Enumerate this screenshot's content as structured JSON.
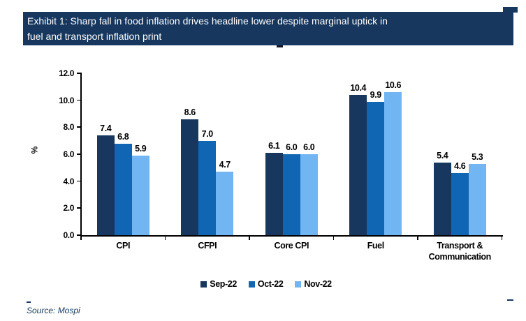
{
  "title_bar": {
    "text": "Exhibit 1: Sharp fall in food inflation drives headline lower despite marginal uptick in fuel and transport inflation print",
    "lines": [
      "Exhibit 1: Sharp fall in food inflation drives headline lower despite marginal uptick in",
      "fuel and transport inflation print"
    ],
    "background_color": "#17375E",
    "text_color": "#ffffff"
  },
  "source": {
    "text": "Source: Mospi",
    "color": "#17375E"
  },
  "chart_data": {
    "type": "bar",
    "categories": [
      "CPI",
      "CFPI",
      "Core CPI",
      "Fuel",
      "Transport & Communication"
    ],
    "series": [
      {
        "name": "Sep-22",
        "color": "#17375E",
        "values": [
          7.4,
          8.6,
          6.1,
          10.4,
          5.4
        ]
      },
      {
        "name": "Oct-22",
        "color": "#1066B2",
        "values": [
          6.8,
          7.0,
          6.0,
          9.9,
          4.6
        ]
      },
      {
        "name": "Nov-22",
        "color": "#71B6F3",
        "values": [
          5.9,
          4.7,
          6.0,
          10.6,
          5.3
        ]
      }
    ],
    "title": "",
    "xlabel": "",
    "ylabel": "%",
    "ylim": [
      0,
      12
    ],
    "yticks": [
      0,
      2,
      4,
      6,
      8,
      10,
      12
    ],
    "ytick_labels": [
      "0.0",
      "2.0",
      "4.0",
      "6.0",
      "8.0",
      "10.0",
      "12.0"
    ],
    "value_label_decimals": 1,
    "grid": false,
    "legend_position": "bottom",
    "axis_color": "#000000"
  }
}
